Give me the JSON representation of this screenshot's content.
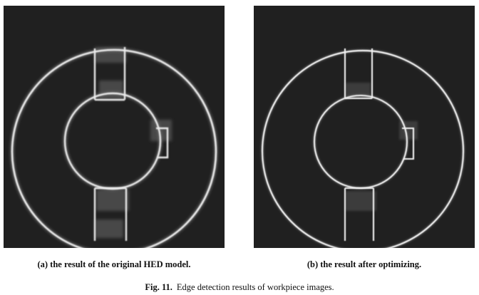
{
  "figure": {
    "panels": [
      {
        "id": "a",
        "caption": "(a) the result of the original HED model.",
        "variant": "original",
        "edge_color": "#e8e8e8",
        "background_color": "#202020"
      },
      {
        "id": "b",
        "caption": "(b) the result after optimizing.",
        "variant": "optimized",
        "edge_color": "#f2f2f2",
        "background_color": "#202020"
      }
    ],
    "caption_label": "Fig. 11.",
    "caption_text": "Edge detection results of workpiece images."
  }
}
